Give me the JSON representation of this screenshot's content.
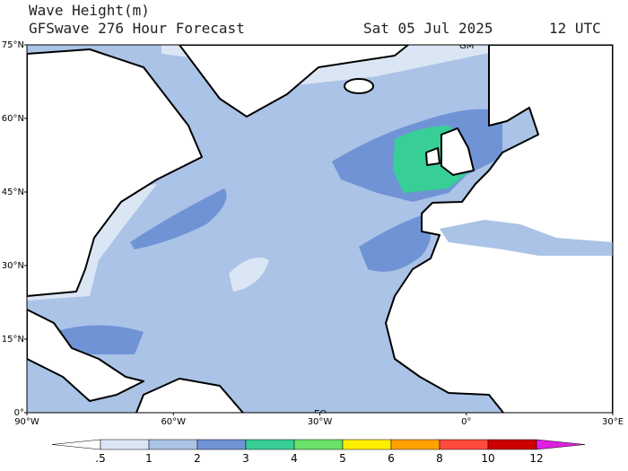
{
  "header": {
    "title": "Wave Height(m)",
    "subtitle": "GFSwave 276 Hour Forecast",
    "date": "Sat 05 Jul 2025",
    "time": "12 UTC"
  },
  "map": {
    "lon_range": [
      -90,
      30
    ],
    "lat_range": [
      0,
      75
    ],
    "lat_ticks": [
      {
        "value": 75,
        "label": "75°N"
      },
      {
        "value": 60,
        "label": "60°N"
      },
      {
        "value": 45,
        "label": "45°N"
      },
      {
        "value": 30,
        "label": "30°N"
      },
      {
        "value": 15,
        "label": "15°N"
      },
      {
        "value": 0,
        "label": "0°"
      }
    ],
    "lon_ticks": [
      {
        "value": -90,
        "label": "90°W"
      },
      {
        "value": -60,
        "label": "60°W"
      },
      {
        "value": -30,
        "label": "30°W"
      },
      {
        "value": 0,
        "label": "0°"
      },
      {
        "value": 30,
        "label": "30°E"
      }
    ],
    "gm_label": "GM",
    "eq_label": "EQ"
  },
  "colorbar": {
    "levels": [
      {
        "value": 0.5,
        "label": ".5"
      },
      1,
      2,
      3,
      4,
      5,
      6,
      8,
      10,
      12
    ],
    "colors": [
      "#ffffff",
      "#dbe6f5",
      "#aac3e6",
      "#6f93d5",
      "#38cf96",
      "#6ae26a",
      "#ffee00",
      "#ffa200",
      "#ff4a3c",
      "#cc0000",
      "#e020e0"
    ]
  }
}
